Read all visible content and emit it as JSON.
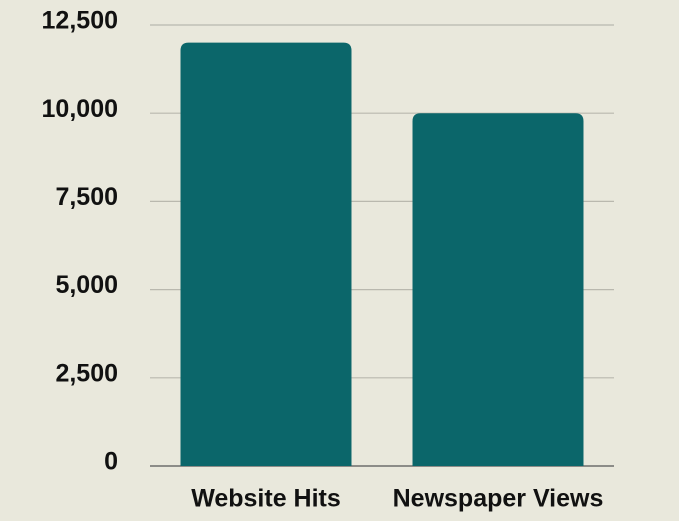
{
  "chart_data": {
    "type": "bar",
    "categories": [
      "Website Hits",
      "Newspaper Views"
    ],
    "values": [
      12000,
      10000
    ],
    "color": "#0b666a",
    "ylim": [
      0,
      12500
    ],
    "yticks": [
      0,
      {
        "value": 2500,
        "label": "2,500"
      },
      {
        "value": 5000,
        "label": "5,000"
      },
      {
        "value": 7500,
        "label": "7,500"
      },
      {
        "value": 10000,
        "label": "10,000"
      },
      {
        "value": 12500,
        "label": "12,500"
      }
    ],
    "grid": true
  }
}
